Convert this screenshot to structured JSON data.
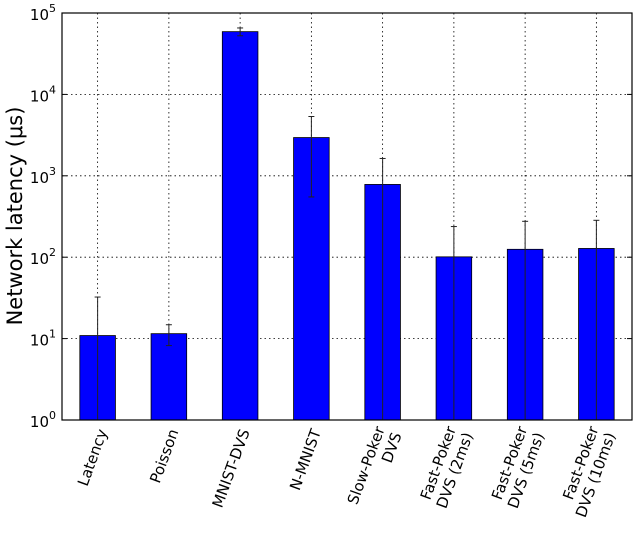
{
  "chart_data": {
    "type": "bar",
    "title": "",
    "xlabel": "",
    "ylabel": "Network latency (μs)",
    "yscale": "log",
    "ylim": [
      1,
      100000
    ],
    "yticks": [
      {
        "value": 1,
        "base": "10",
        "exp": "0"
      },
      {
        "value": 10,
        "base": "10",
        "exp": "1"
      },
      {
        "value": 100,
        "base": "10",
        "exp": "2"
      },
      {
        "value": 1000,
        "base": "10",
        "exp": "3"
      },
      {
        "value": 10000,
        "base": "10",
        "exp": "4"
      },
      {
        "value": 100000,
        "base": "10",
        "exp": "5"
      }
    ],
    "grid": true,
    "bar_color": "#0000ff",
    "categories": [
      [
        "Latency"
      ],
      [
        "Poisson"
      ],
      [
        "MNIST-DVS"
      ],
      [
        "N-MNIST"
      ],
      [
        "Slow-Poker",
        "DVS"
      ],
      [
        "Fast-Poker",
        "DVS (2ms)"
      ],
      [
        "Fast-Poker",
        "DVS (5ms)"
      ],
      [
        "Fast-Poker",
        "DVS (10ms)"
      ]
    ],
    "values": [
      10.9,
      11.5,
      59000,
      2950,
      783,
      101,
      125,
      128
    ],
    "errors": [
      21.5,
      3.3,
      6500,
      2400,
      850,
      137,
      151,
      156
    ]
  }
}
